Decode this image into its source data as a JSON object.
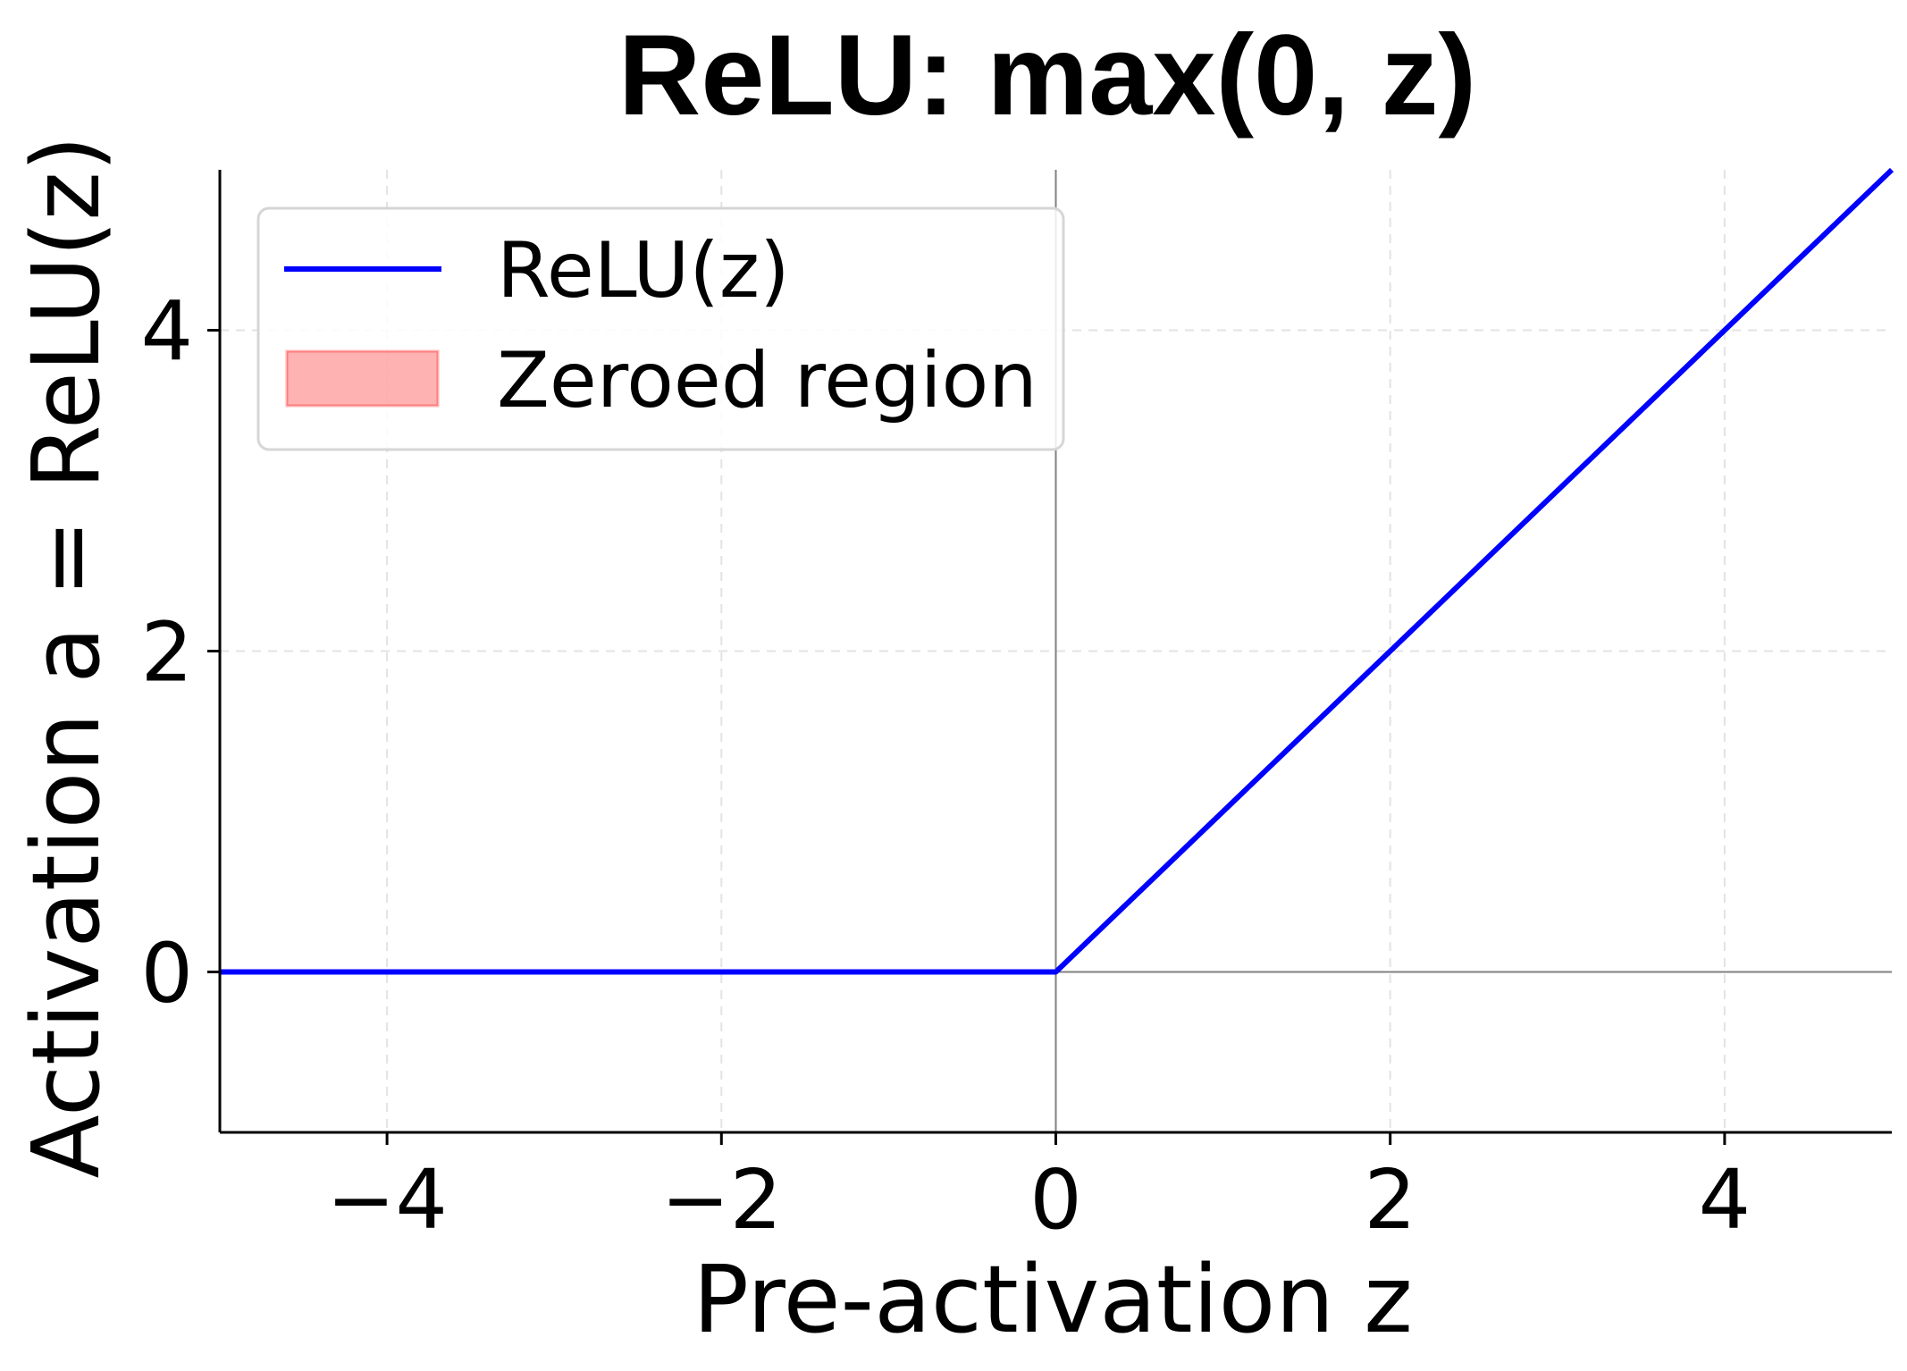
{
  "chart_data": {
    "type": "line",
    "title": "ReLU: max(0, z)",
    "xlabel": "Pre-activation z",
    "ylabel": "Activation a = ReLU(z)",
    "xlim": [
      -5,
      5
    ],
    "ylim": [
      -1,
      5
    ],
    "xticks": [
      {
        "value": -4,
        "label": "−4"
      },
      {
        "value": -2,
        "label": "−2"
      },
      {
        "value": 0,
        "label": "0"
      },
      {
        "value": 2,
        "label": "2"
      },
      {
        "value": 4,
        "label": "4"
      }
    ],
    "yticks": [
      {
        "value": 0,
        "label": "0"
      },
      {
        "value": 2,
        "label": "2"
      },
      {
        "value": 4,
        "label": "4"
      }
    ],
    "grid": true,
    "legend_position": "upper-left",
    "series": [
      {
        "name": "ReLU(z)",
        "color": "#0000ff",
        "x": [
          -5,
          0,
          5
        ],
        "y": [
          0,
          0,
          5
        ]
      }
    ],
    "legend": [
      {
        "label": "ReLU(z)",
        "kind": "line",
        "color": "#0000ff"
      },
      {
        "label": "Zeroed region",
        "kind": "patch",
        "color": "#ff0000",
        "opacity": 0.3
      }
    ]
  }
}
